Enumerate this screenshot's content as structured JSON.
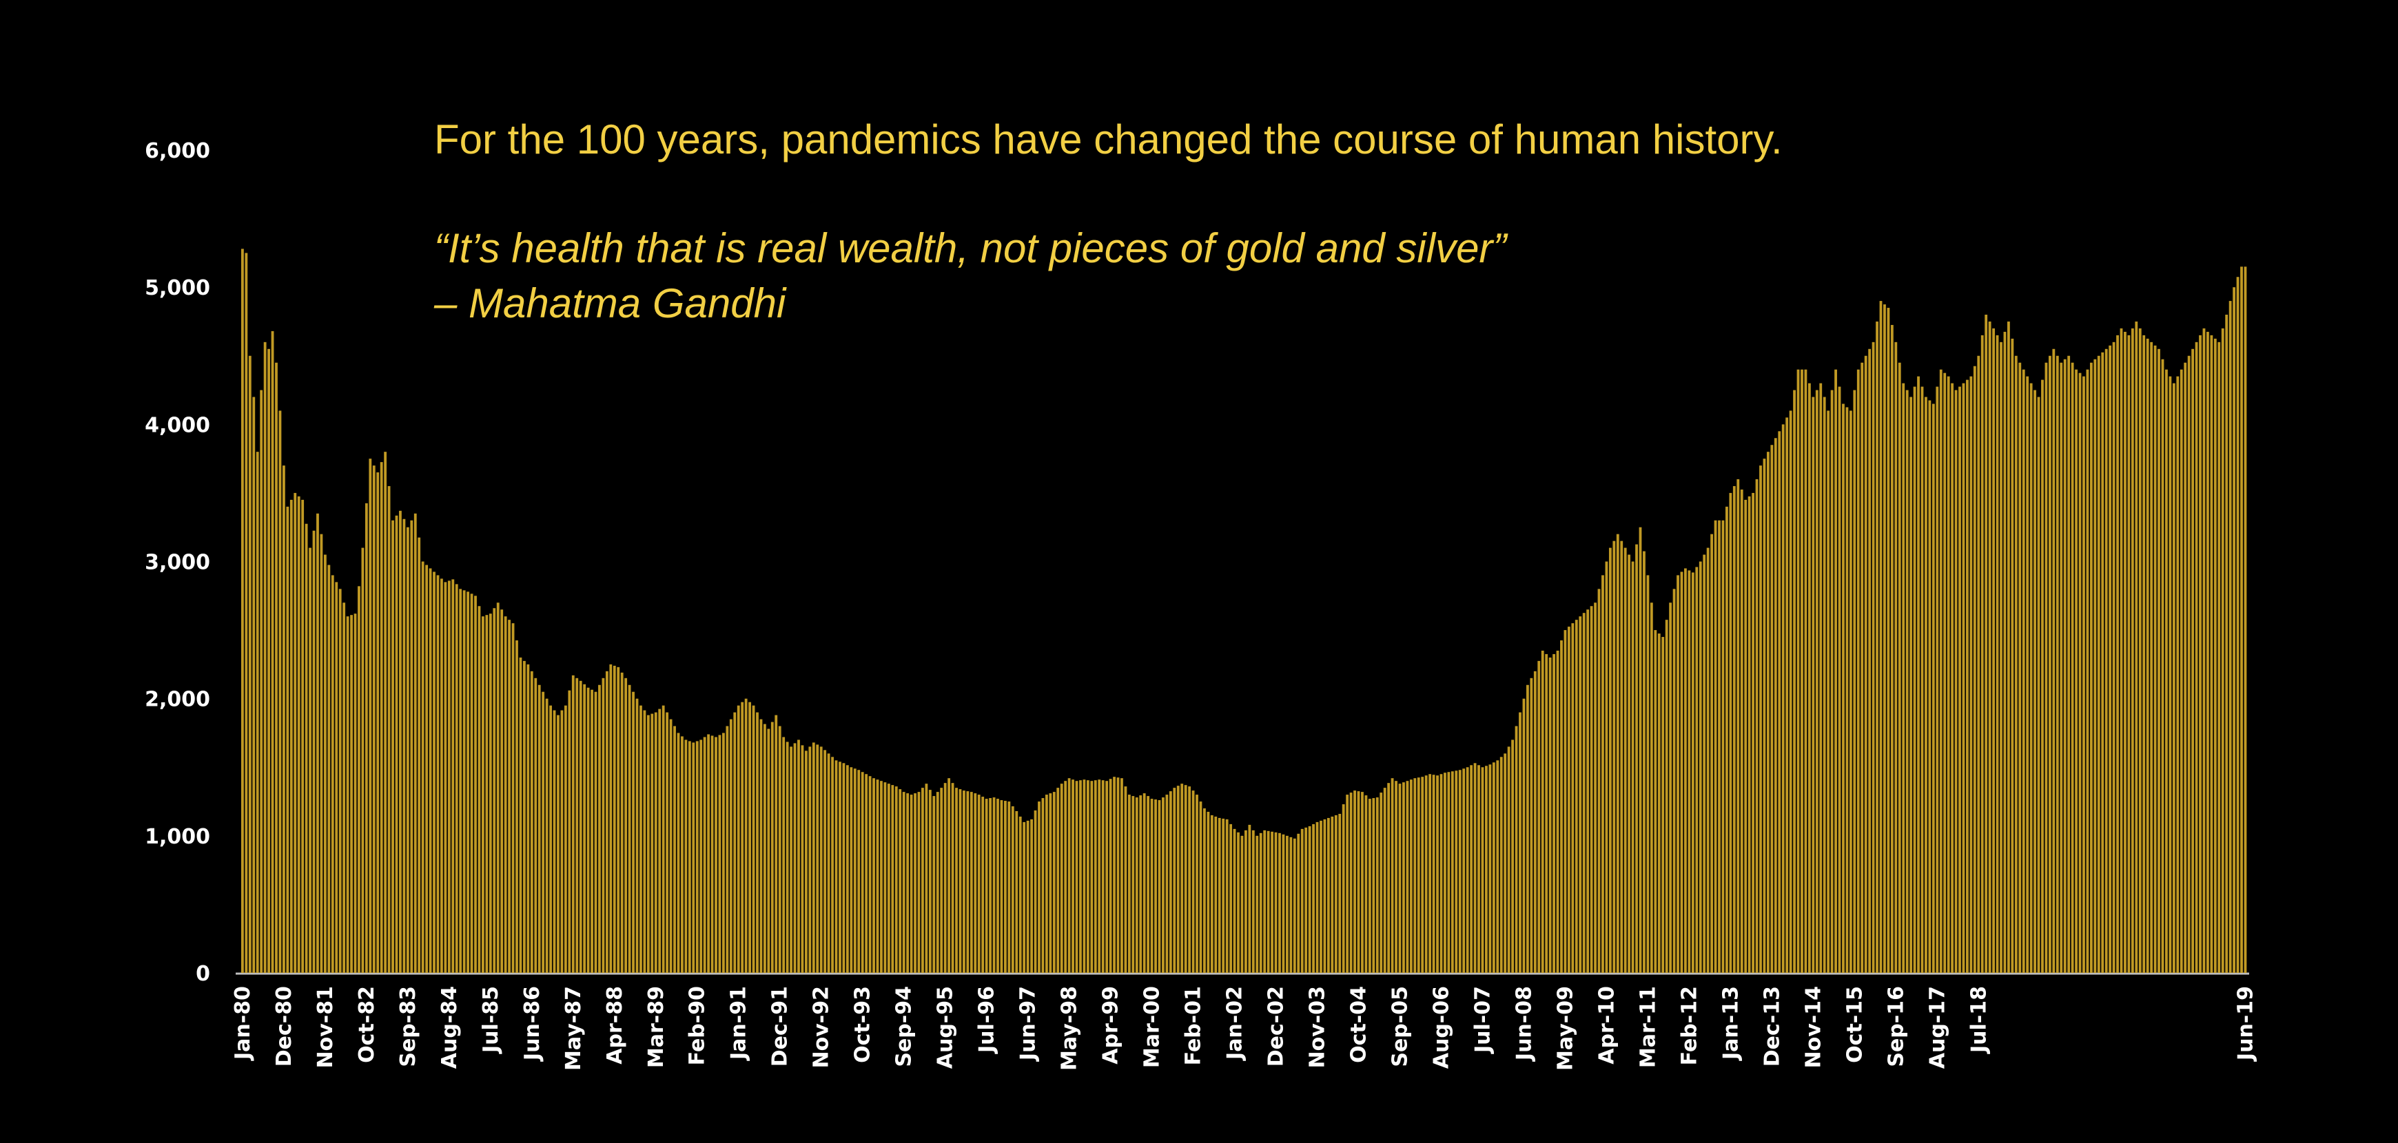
{
  "headline": "For the 100 years, pandemics have changed the course of human history.",
  "quote": "“It’s health that is real wealth, not pieces of gold and silver”",
  "author": "– Mahatma Gandhi",
  "colors": {
    "background": "#000000",
    "bar": "#c19a24",
    "text": "#f2cf44",
    "axis": "#ffffff"
  },
  "chart_data": {
    "type": "bar",
    "title": "",
    "xlabel": "",
    "ylabel": "",
    "ylim": [
      0,
      6000
    ],
    "yticks": [
      0,
      1000,
      2000,
      3000,
      4000,
      5000,
      6000
    ],
    "ytick_labels": [
      "0",
      "1,000",
      "2,000",
      "3,000",
      "4,000",
      "5,000",
      "6,000"
    ],
    "x_start": "Jan-80",
    "x_end": "Jun-19",
    "x_frequency": "monthly",
    "x_tick_labels": [
      "Jan-80",
      "Dec-80",
      "Nov-81",
      "Oct-82",
      "Sep-83",
      "Aug-84",
      "Jul-85",
      "Jun-86",
      "May-87",
      "Apr-88",
      "Mar-89",
      "Feb-90",
      "Jan-91",
      "Dec-91",
      "Nov-92",
      "Oct-93",
      "Sep-94",
      "Aug-95",
      "Jul-96",
      "Jun-97",
      "May-98",
      "Apr-99",
      "Mar-00",
      "Feb-01",
      "Jan-02",
      "Dec-02",
      "Nov-03",
      "Oct-04",
      "Sep-05",
      "Aug-06",
      "Jul-07",
      "Jun-08",
      "May-09",
      "Apr-10",
      "Mar-11",
      "Feb-12",
      "Jan-13",
      "Dec-13",
      "Nov-14",
      "Oct-15",
      "Sep-16",
      "Aug-17",
      "Jul-18",
      "Jun-19"
    ],
    "anchors": [
      [
        0,
        5280
      ],
      [
        1,
        5250
      ],
      [
        2,
        4500
      ],
      [
        3,
        4200
      ],
      [
        4,
        3800
      ],
      [
        5,
        4250
      ],
      [
        6,
        4600
      ],
      [
        7,
        4550
      ],
      [
        8,
        4680
      ],
      [
        9,
        4450
      ],
      [
        10,
        4100
      ],
      [
        11,
        3700
      ],
      [
        12,
        3400
      ],
      [
        14,
        3500
      ],
      [
        16,
        3450
      ],
      [
        18,
        3100
      ],
      [
        20,
        3350
      ],
      [
        22,
        3050
      ],
      [
        24,
        2900
      ],
      [
        26,
        2800
      ],
      [
        28,
        2600
      ],
      [
        30,
        2620
      ],
      [
        31,
        2820
      ],
      [
        32,
        3100
      ],
      [
        34,
        3750
      ],
      [
        36,
        3650
      ],
      [
        38,
        3800
      ],
      [
        40,
        3300
      ],
      [
        42,
        3370
      ],
      [
        44,
        3250
      ],
      [
        46,
        3350
      ],
      [
        48,
        3000
      ],
      [
        50,
        2950
      ],
      [
        52,
        2900
      ],
      [
        54,
        2850
      ],
      [
        56,
        2870
      ],
      [
        58,
        2800
      ],
      [
        60,
        2780
      ],
      [
        62,
        2750
      ],
      [
        64,
        2600
      ],
      [
        66,
        2620
      ],
      [
        68,
        2700
      ],
      [
        70,
        2600
      ],
      [
        72,
        2550
      ],
      [
        74,
        2300
      ],
      [
        76,
        2250
      ],
      [
        78,
        2150
      ],
      [
        80,
        2050
      ],
      [
        82,
        1950
      ],
      [
        84,
        1880
      ],
      [
        86,
        1950
      ],
      [
        88,
        2170
      ],
      [
        90,
        2130
      ],
      [
        92,
        2080
      ],
      [
        94,
        2050
      ],
      [
        96,
        2150
      ],
      [
        98,
        2250
      ],
      [
        100,
        2230
      ],
      [
        102,
        2150
      ],
      [
        104,
        2050
      ],
      [
        106,
        1950
      ],
      [
        108,
        1880
      ],
      [
        110,
        1900
      ],
      [
        112,
        1950
      ],
      [
        114,
        1850
      ],
      [
        116,
        1750
      ],
      [
        118,
        1700
      ],
      [
        120,
        1680
      ],
      [
        122,
        1700
      ],
      [
        124,
        1740
      ],
      [
        126,
        1720
      ],
      [
        128,
        1750
      ],
      [
        130,
        1850
      ],
      [
        132,
        1950
      ],
      [
        134,
        2000
      ],
      [
        136,
        1950
      ],
      [
        138,
        1850
      ],
      [
        140,
        1780
      ],
      [
        142,
        1880
      ],
      [
        144,
        1720
      ],
      [
        146,
        1650
      ],
      [
        148,
        1700
      ],
      [
        150,
        1620
      ],
      [
        152,
        1680
      ],
      [
        154,
        1650
      ],
      [
        156,
        1600
      ],
      [
        158,
        1550
      ],
      [
        160,
        1530
      ],
      [
        162,
        1500
      ],
      [
        164,
        1480
      ],
      [
        166,
        1450
      ],
      [
        168,
        1420
      ],
      [
        170,
        1400
      ],
      [
        172,
        1380
      ],
      [
        174,
        1360
      ],
      [
        176,
        1320
      ],
      [
        178,
        1300
      ],
      [
        180,
        1320
      ],
      [
        182,
        1380
      ],
      [
        184,
        1290
      ],
      [
        186,
        1350
      ],
      [
        188,
        1420
      ],
      [
        190,
        1350
      ],
      [
        192,
        1330
      ],
      [
        194,
        1320
      ],
      [
        196,
        1300
      ],
      [
        198,
        1270
      ],
      [
        200,
        1280
      ],
      [
        202,
        1260
      ],
      [
        204,
        1250
      ],
      [
        206,
        1180
      ],
      [
        208,
        1100
      ],
      [
        210,
        1120
      ],
      [
        212,
        1250
      ],
      [
        214,
        1300
      ],
      [
        216,
        1320
      ],
      [
        218,
        1380
      ],
      [
        220,
        1420
      ],
      [
        222,
        1400
      ],
      [
        224,
        1410
      ],
      [
        226,
        1400
      ],
      [
        228,
        1410
      ],
      [
        230,
        1400
      ],
      [
        232,
        1430
      ],
      [
        234,
        1420
      ],
      [
        236,
        1300
      ],
      [
        238,
        1280
      ],
      [
        240,
        1310
      ],
      [
        242,
        1270
      ],
      [
        244,
        1260
      ],
      [
        246,
        1300
      ],
      [
        248,
        1350
      ],
      [
        250,
        1380
      ],
      [
        252,
        1360
      ],
      [
        254,
        1300
      ],
      [
        256,
        1200
      ],
      [
        258,
        1150
      ],
      [
        260,
        1130
      ],
      [
        262,
        1120
      ],
      [
        264,
        1050
      ],
      [
        266,
        1000
      ],
      [
        268,
        1080
      ],
      [
        270,
        1000
      ],
      [
        272,
        1040
      ],
      [
        274,
        1030
      ],
      [
        276,
        1020
      ],
      [
        278,
        1000
      ],
      [
        280,
        980
      ],
      [
        282,
        1050
      ],
      [
        284,
        1070
      ],
      [
        286,
        1100
      ],
      [
        288,
        1120
      ],
      [
        290,
        1140
      ],
      [
        292,
        1160
      ],
      [
        294,
        1300
      ],
      [
        296,
        1330
      ],
      [
        298,
        1320
      ],
      [
        300,
        1270
      ],
      [
        302,
        1280
      ],
      [
        304,
        1350
      ],
      [
        306,
        1420
      ],
      [
        308,
        1380
      ],
      [
        310,
        1400
      ],
      [
        312,
        1420
      ],
      [
        314,
        1430
      ],
      [
        316,
        1450
      ],
      [
        318,
        1440
      ],
      [
        320,
        1460
      ],
      [
        322,
        1470
      ],
      [
        324,
        1480
      ],
      [
        326,
        1500
      ],
      [
        328,
        1530
      ],
      [
        330,
        1500
      ],
      [
        332,
        1520
      ],
      [
        334,
        1550
      ],
      [
        336,
        1600
      ],
      [
        338,
        1700
      ],
      [
        340,
        1900
      ],
      [
        342,
        2100
      ],
      [
        344,
        2200
      ],
      [
        346,
        2350
      ],
      [
        348,
        2300
      ],
      [
        350,
        2350
      ],
      [
        352,
        2500
      ],
      [
        354,
        2550
      ],
      [
        356,
        2600
      ],
      [
        358,
        2650
      ],
      [
        360,
        2700
      ],
      [
        362,
        2900
      ],
      [
        364,
        3100
      ],
      [
        366,
        3200
      ],
      [
        368,
        3100
      ],
      [
        370,
        3000
      ],
      [
        372,
        3250
      ],
      [
        374,
        2900
      ],
      [
        376,
        2500
      ],
      [
        378,
        2450
      ],
      [
        380,
        2700
      ],
      [
        382,
        2900
      ],
      [
        384,
        2950
      ],
      [
        386,
        2920
      ],
      [
        388,
        3000
      ],
      [
        390,
        3100
      ],
      [
        392,
        3300
      ],
      [
        394,
        3300
      ],
      [
        396,
        3500
      ],
      [
        398,
        3600
      ],
      [
        400,
        3450
      ],
      [
        402,
        3500
      ],
      [
        404,
        3700
      ],
      [
        406,
        3800
      ],
      [
        408,
        3900
      ],
      [
        410,
        4000
      ],
      [
        412,
        4100
      ],
      [
        414,
        4400
      ],
      [
        416,
        4400
      ],
      [
        418,
        4200
      ],
      [
        420,
        4300
      ],
      [
        422,
        4100
      ],
      [
        424,
        4400
      ],
      [
        426,
        4150
      ],
      [
        428,
        4100
      ],
      [
        430,
        4400
      ],
      [
        432,
        4500
      ],
      [
        434,
        4600
      ],
      [
        436,
        4900
      ],
      [
        438,
        4850
      ],
      [
        440,
        4600
      ],
      [
        442,
        4300
      ],
      [
        444,
        4200
      ],
      [
        446,
        4350
      ],
      [
        448,
        4200
      ],
      [
        450,
        4150
      ],
      [
        452,
        4400
      ],
      [
        454,
        4350
      ],
      [
        456,
        4250
      ],
      [
        458,
        4300
      ],
      [
        460,
        4350
      ],
      [
        462,
        4500
      ],
      [
        464,
        4800
      ],
      [
        466,
        4700
      ],
      [
        468,
        4600
      ],
      [
        470,
        4750
      ],
      [
        472,
        4500
      ],
      [
        474,
        4400
      ],
      [
        476,
        4300
      ],
      [
        478,
        4200
      ],
      [
        480,
        4450
      ],
      [
        482,
        4550
      ],
      [
        484,
        4450
      ],
      [
        486,
        4500
      ],
      [
        488,
        4400
      ],
      [
        490,
        4350
      ],
      [
        492,
        4450
      ],
      [
        494,
        4500
      ],
      [
        496,
        4550
      ],
      [
        498,
        4600
      ],
      [
        500,
        4700
      ],
      [
        502,
        4650
      ],
      [
        504,
        4750
      ],
      [
        506,
        4650
      ],
      [
        508,
        4600
      ],
      [
        510,
        4550
      ],
      [
        512,
        4400
      ],
      [
        514,
        4300
      ],
      [
        516,
        4400
      ],
      [
        518,
        4500
      ],
      [
        520,
        4600
      ],
      [
        522,
        4700
      ],
      [
        524,
        4650
      ],
      [
        526,
        4600
      ],
      [
        528,
        4800
      ],
      [
        530,
        5000
      ],
      [
        532,
        5150
      ],
      [
        533,
        5150
      ]
    ]
  }
}
